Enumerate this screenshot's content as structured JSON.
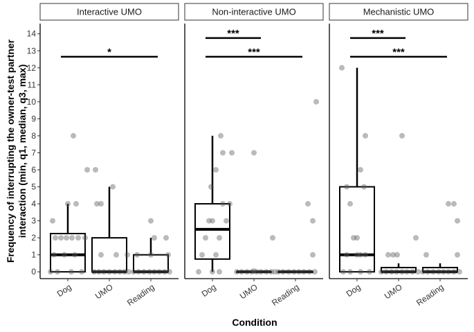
{
  "chart_data": {
    "type": "box",
    "xlabel": "Condition",
    "ylabel_lines": [
      "Frequency of interrupting the owner-test partner",
      "interaction (min, q1, median, q3, max)"
    ],
    "ylim": [
      -0.4,
      14.6
    ],
    "yticks": [
      0,
      1,
      2,
      3,
      4,
      5,
      6,
      7,
      8,
      9,
      10,
      11,
      12,
      13,
      14
    ],
    "categories": [
      "Dog",
      "UMO",
      "Reading"
    ],
    "panels": [
      {
        "title": "Interactive UMO",
        "boxes": [
          {
            "category": "Dog",
            "min": 0,
            "q1": 0,
            "median": 1,
            "q3": 2.25,
            "max": 4
          },
          {
            "category": "UMO",
            "min": 0,
            "q1": 0,
            "median": 0,
            "q3": 2,
            "max": 5
          },
          {
            "category": "Reading",
            "min": 0,
            "q1": 0,
            "median": 0,
            "q3": 1,
            "max": 2
          }
        ],
        "points": [
          [
            [
              -0.25,
              0
            ],
            [
              -0.15,
              0
            ],
            [
              0.05,
              0
            ],
            [
              0.2,
              0
            ],
            [
              -0.2,
              1
            ],
            [
              -0.05,
              1
            ],
            [
              0.1,
              1
            ],
            [
              -0.18,
              2
            ],
            [
              -0.1,
              2
            ],
            [
              -0.02,
              2
            ],
            [
              0.06,
              2
            ],
            [
              0.15,
              2
            ],
            [
              0.25,
              2
            ],
            [
              -0.22,
              3
            ],
            [
              0.0,
              4
            ],
            [
              0.12,
              4
            ],
            [
              0.28,
              6
            ],
            [
              0.08,
              8
            ]
          ],
          [
            [
              -0.22,
              0
            ],
            [
              -0.15,
              0
            ],
            [
              -0.08,
              0
            ],
            [
              0.0,
              0
            ],
            [
              0.08,
              0
            ],
            [
              0.15,
              0
            ],
            [
              0.22,
              0
            ],
            [
              0.28,
              0
            ],
            [
              -0.12,
              1
            ],
            [
              0.1,
              1
            ],
            [
              0.26,
              1
            ],
            [
              -0.18,
              4
            ],
            [
              -0.12,
              4
            ],
            [
              0.05,
              5
            ],
            [
              -0.2,
              6
            ]
          ],
          [
            [
              -0.25,
              0
            ],
            [
              -0.18,
              0
            ],
            [
              -0.1,
              0
            ],
            [
              -0.02,
              0
            ],
            [
              0.05,
              0
            ],
            [
              0.12,
              0
            ],
            [
              0.2,
              0
            ],
            [
              0.27,
              0
            ],
            [
              -0.2,
              1
            ],
            [
              0.0,
              1
            ],
            [
              0.25,
              1
            ],
            [
              0.05,
              2
            ],
            [
              0.22,
              2
            ],
            [
              0.0,
              3
            ]
          ]
        ],
        "sig": [
          {
            "from": 0,
            "to": 2,
            "y": 12.65,
            "label": "*"
          }
        ]
      },
      {
        "title": "Non-interactive UMO",
        "boxes": [
          {
            "category": "Dog",
            "min": 0,
            "q1": 0.75,
            "median": 2.5,
            "q3": 4,
            "max": 8
          },
          {
            "category": "UMO",
            "min": 0,
            "q1": 0,
            "median": 0,
            "q3": 0,
            "max": 0
          },
          {
            "category": "Reading",
            "min": 0,
            "q1": 0,
            "median": 0,
            "q3": 0,
            "max": 0
          }
        ],
        "points": [
          [
            [
              -0.2,
              0
            ],
            [
              0.0,
              0
            ],
            [
              0.1,
              0
            ],
            [
              -0.15,
              1
            ],
            [
              0.05,
              1
            ],
            [
              -0.1,
              2
            ],
            [
              0.1,
              2
            ],
            [
              -0.05,
              3
            ],
            [
              0.0,
              3
            ],
            [
              0.2,
              3
            ],
            [
              0.15,
              4
            ],
            [
              0.25,
              4
            ],
            [
              -0.02,
              5
            ],
            [
              0.05,
              6
            ],
            [
              0.15,
              7
            ],
            [
              0.28,
              7
            ],
            [
              0.12,
              8
            ]
          ],
          [
            [
              -0.25,
              0
            ],
            [
              -0.18,
              0
            ],
            [
              -0.1,
              0
            ],
            [
              -0.03,
              0
            ],
            [
              0.04,
              0
            ],
            [
              0.1,
              0
            ],
            [
              0.18,
              0
            ],
            [
              0.25,
              0
            ],
            [
              0.3,
              0
            ],
            [
              0.0,
              0.05
            ],
            [
              0.27,
              2
            ],
            [
              0.0,
              7
            ]
          ],
          [
            [
              -0.25,
              0
            ],
            [
              -0.18,
              0
            ],
            [
              -0.1,
              0
            ],
            [
              -0.02,
              0
            ],
            [
              0.05,
              0
            ],
            [
              0.12,
              0
            ],
            [
              0.2,
              0
            ],
            [
              0.28,
              0
            ],
            [
              0.25,
              1
            ],
            [
              0.25,
              3
            ],
            [
              0.18,
              4
            ],
            [
              0.3,
              10
            ]
          ]
        ],
        "sig": [
          {
            "from": 0,
            "to": 1,
            "y": 13.75,
            "label": "***"
          },
          {
            "from": 0,
            "to": 2,
            "y": 12.65,
            "label": "***"
          }
        ]
      },
      {
        "title": "Mechanistic UMO",
        "boxes": [
          {
            "category": "Dog",
            "min": 0,
            "q1": 0,
            "median": 1,
            "q3": 5,
            "max": 12
          },
          {
            "category": "UMO",
            "min": 0,
            "q1": 0,
            "median": 0,
            "q3": 0.25,
            "max": 0.5
          },
          {
            "category": "Reading",
            "min": 0,
            "q1": 0,
            "median": 0,
            "q3": 0.25,
            "max": 0.5
          }
        ],
        "points": [
          [
            [
              -0.2,
              0
            ],
            [
              -0.1,
              0
            ],
            [
              0.05,
              0
            ],
            [
              0.18,
              0
            ],
            [
              -0.15,
              1
            ],
            [
              0.0,
              1
            ],
            [
              0.05,
              1
            ],
            [
              0.12,
              1
            ],
            [
              -0.05,
              2
            ],
            [
              0.0,
              2
            ],
            [
              -0.1,
              4
            ],
            [
              -0.15,
              5
            ],
            [
              0.1,
              5
            ],
            [
              0.05,
              6
            ],
            [
              0.12,
              8
            ],
            [
              -0.22,
              12
            ]
          ],
          [
            [
              -0.25,
              0
            ],
            [
              -0.18,
              0
            ],
            [
              -0.1,
              0
            ],
            [
              -0.03,
              0
            ],
            [
              0.05,
              0
            ],
            [
              0.12,
              0
            ],
            [
              0.2,
              0
            ],
            [
              0.28,
              0
            ],
            [
              -0.15,
              1
            ],
            [
              -0.08,
              1
            ],
            [
              -0.02,
              1
            ],
            [
              0.25,
              2
            ],
            [
              0.05,
              8
            ]
          ],
          [
            [
              -0.25,
              0
            ],
            [
              -0.18,
              0
            ],
            [
              -0.1,
              0
            ],
            [
              -0.02,
              0
            ],
            [
              0.05,
              0
            ],
            [
              0.12,
              0
            ],
            [
              0.2,
              0
            ],
            [
              0.28,
              0
            ],
            [
              -0.2,
              1
            ],
            [
              0.25,
              1
            ],
            [
              0.25,
              3
            ],
            [
              0.12,
              4
            ],
            [
              0.2,
              4
            ]
          ]
        ],
        "sig": [
          {
            "from": 0,
            "to": 1,
            "y": 13.75,
            "label": "***"
          },
          {
            "from": 0,
            "to": 2,
            "y": 12.65,
            "label": "***"
          }
        ]
      }
    ]
  }
}
